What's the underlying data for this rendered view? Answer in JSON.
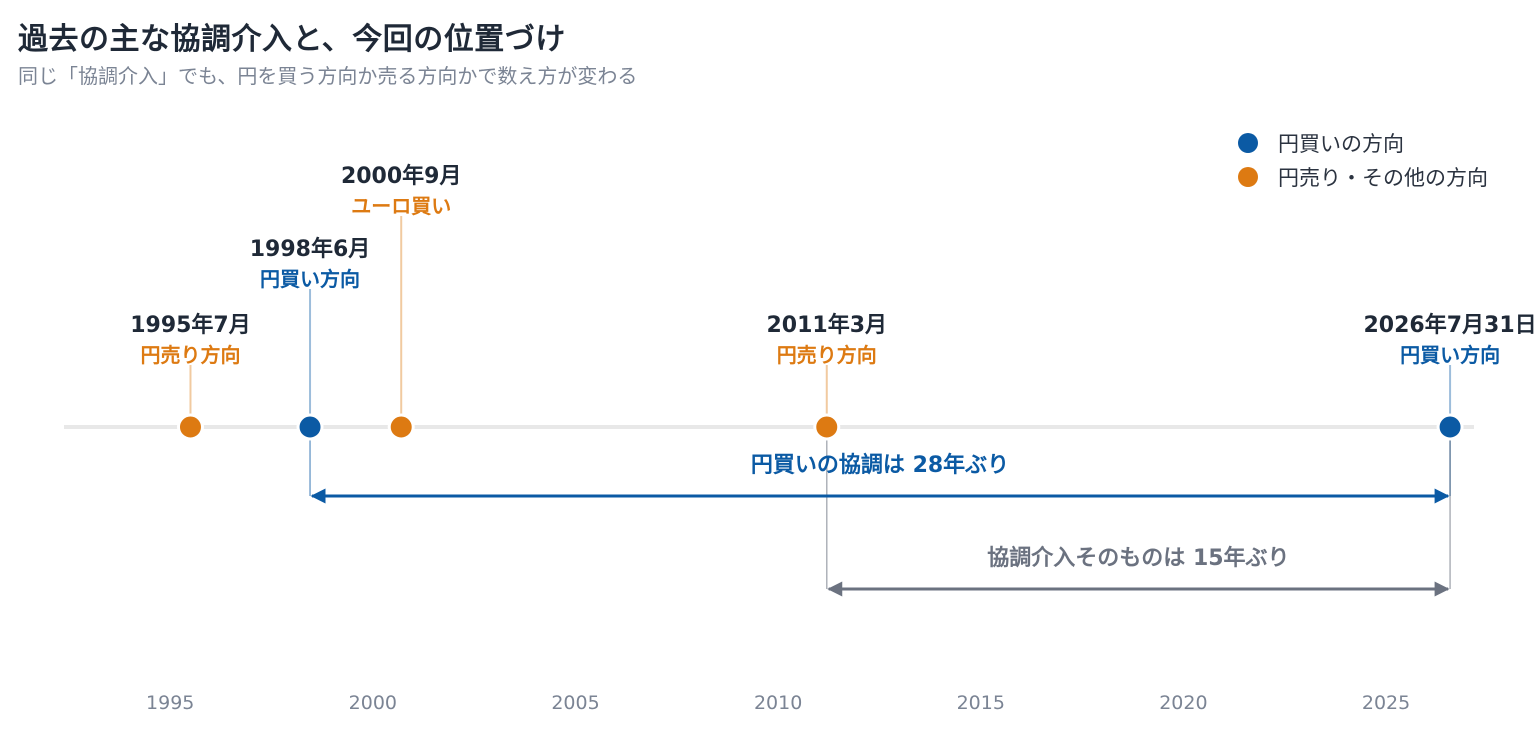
{
  "title": "過去の主な協調介入と、今回の位置づけ",
  "subtitle": "同じ「協調介入」でも、円を買う方向か売る方向かで数え方が変わる",
  "colors": {
    "yen_buy": "#0b5aa4",
    "yen_sell": "#dd7a12",
    "span_gray": "#6b7280",
    "axis_line": "#e8e8e8",
    "tick_text": "#7b8494",
    "date_text": "#1f2937"
  },
  "legend": {
    "yen_buy": "円買いの方向",
    "yen_sell": "円売り・その他の方向"
  },
  "chart_data": {
    "type": "scatter",
    "x_axis": {
      "min": 1990.8,
      "max": 2028.7,
      "ticks": [
        1995,
        2000,
        2005,
        2010,
        2015,
        2020,
        2025
      ]
    },
    "events": [
      {
        "x": 1995.5,
        "date": "1995年7月",
        "label": "円売り方向",
        "category": "yen_sell",
        "level": 1
      },
      {
        "x": 1998.45,
        "date": "1998年6月",
        "label": "円買い方向",
        "category": "yen_buy",
        "level": 2
      },
      {
        "x": 2000.7,
        "date": "2000年9月",
        "label": "ユーロ買い",
        "category": "yen_sell",
        "level": 3
      },
      {
        "x": 2011.2,
        "date": "2011年3月",
        "label": "円売り方向",
        "category": "yen_sell",
        "level": 1
      },
      {
        "x": 2026.58,
        "date": "2026年7月31日",
        "label": "円買い方向",
        "category": "yen_buy",
        "level": 1
      }
    ],
    "spans": [
      {
        "from": 1998.45,
        "to": 2026.58,
        "label": "円買いの協調は 28年ぶり",
        "color_key": "yen_buy"
      },
      {
        "from": 2011.2,
        "to": 2026.58,
        "label": "協調介入そのものは 15年ぶり",
        "color_key": "span_gray"
      }
    ]
  }
}
